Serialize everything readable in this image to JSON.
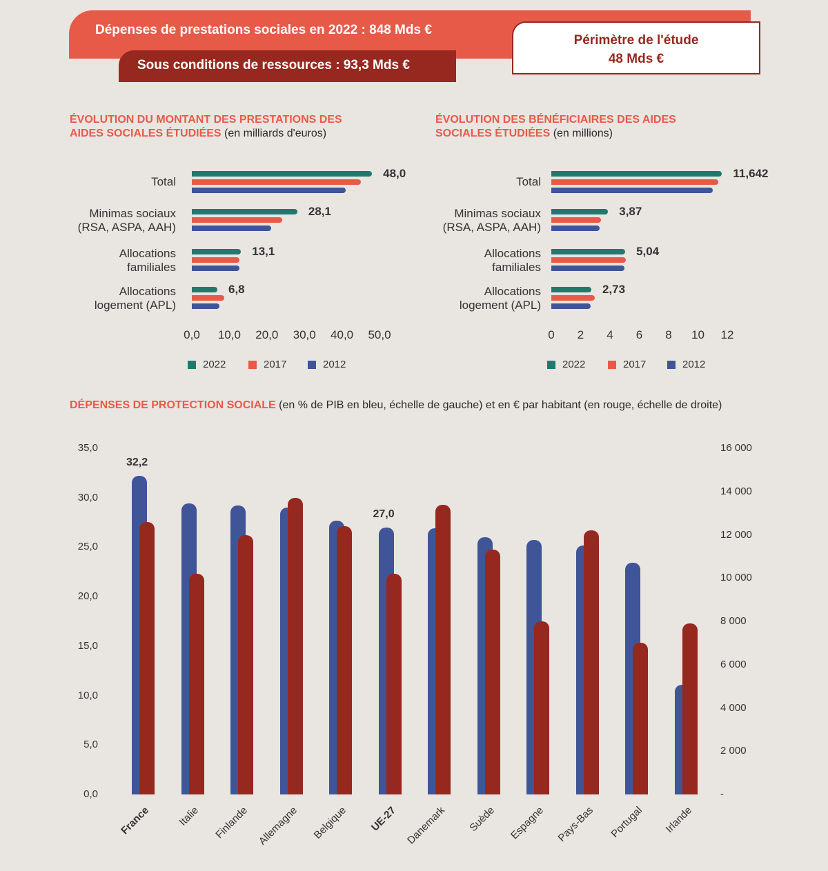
{
  "header": {
    "total_label": "Dépenses de prestations sociales en 2022 : 848 Mds €",
    "conditions_label": "Sous conditions de ressources : 93,3 Mds €",
    "perimeter_line1": "Périmètre de l'étude",
    "perimeter_line2": "48 Mds €"
  },
  "colors": {
    "s2022": "#1f7a6e",
    "s2017": "#e85a48",
    "s2012": "#3f5597",
    "pib_blue": "#3f5597",
    "hab_red": "#97281f"
  },
  "chart_data": [
    {
      "type": "bar",
      "orientation": "horizontal",
      "title_line1": "ÉVOLUTION DU MONTANT DES PRESTATIONS DES",
      "title_line2": "AIDES SOCIALES ÉTUDIÉES",
      "subtitle": "(en milliards d'euros)",
      "categories": [
        "Total",
        "Minimas sociaux\n(RSA, ASPA, AAH)",
        "Allocations\nfamiliales",
        "Allocations\nlogement (APL)"
      ],
      "series": [
        {
          "name": "2022",
          "values": [
            48.0,
            28.1,
            13.1,
            6.8
          ]
        },
        {
          "name": "2017",
          "values": [
            45.0,
            24.0,
            12.7,
            8.7
          ]
        },
        {
          "name": "2012",
          "values": [
            41.0,
            21.2,
            12.6,
            7.4
          ]
        }
      ],
      "value_labels": [
        "48,0",
        "28,1",
        "13,1",
        "6,8"
      ],
      "xlim": [
        0,
        50
      ],
      "ticks": [
        "0,0",
        "10,0",
        "20,0",
        "30,0",
        "40,0",
        "50,0"
      ],
      "tick_values": [
        0,
        10,
        20,
        30,
        40,
        50
      ],
      "legend": "bottom"
    },
    {
      "type": "bar",
      "orientation": "horizontal",
      "title_line1": "ÉVOLUTION DES BÉNÉFICIAIRES DES AIDES",
      "title_line2": "SOCIALES ÉTUDIÉES",
      "subtitle": "(en millions)",
      "categories": [
        "Total",
        "Minimas sociaux\n(RSA, ASPA, AAH)",
        "Allocations\nfamiliales",
        "Allocations\nlogement (APL)"
      ],
      "series": [
        {
          "name": "2022",
          "values": [
            11.642,
            3.87,
            5.04,
            2.73
          ]
        },
        {
          "name": "2017",
          "values": [
            11.4,
            3.4,
            5.1,
            2.95
          ]
        },
        {
          "name": "2012",
          "values": [
            11.0,
            3.3,
            5.0,
            2.7
          ]
        }
      ],
      "value_labels": [
        "11,642",
        "3,87",
        "5,04",
        "2,73"
      ],
      "xlim": [
        0,
        12
      ],
      "ticks": [
        "0",
        "2",
        "4",
        "6",
        "8",
        "10",
        "12"
      ],
      "tick_values": [
        0,
        2,
        4,
        6,
        8,
        10,
        12
      ],
      "legend": "bottom"
    },
    {
      "type": "bar",
      "orientation": "vertical",
      "title_highlight": "DÉPENSES DE PROTECTION SOCIALE",
      "title_rest": " (en % de PIB en bleu, échelle de gauche) et en € par habitant (en rouge, échelle de droite)",
      "categories": [
        "France",
        "Italie",
        "Finlande",
        "Allemagne",
        "Belgique",
        "UE-27",
        "Danemark",
        "Suède",
        "Espagne",
        "Pays-Bas",
        "Portugal",
        "Irlande"
      ],
      "bold_categories": [
        "France",
        "UE-27"
      ],
      "series": [
        {
          "name": "% de PIB",
          "axis": "left",
          "values": [
            32.2,
            29.4,
            29.2,
            29.0,
            27.7,
            27.0,
            26.9,
            26.0,
            25.7,
            25.2,
            23.4,
            11.1
          ]
        },
        {
          "name": "€ par habitant",
          "axis": "right",
          "values": [
            12600,
            10200,
            12000,
            13700,
            12400,
            10200,
            13400,
            11300,
            8000,
            12200,
            7000,
            7900
          ]
        }
      ],
      "annotations": [
        {
          "category": "France",
          "text": "32,2"
        },
        {
          "category": "UE-27",
          "text": "27,0"
        }
      ],
      "left_ylim": [
        0,
        35
      ],
      "left_ticks": [
        "0,0",
        "5,0",
        "10,0",
        "15,0",
        "20,0",
        "25,0",
        "30,0",
        "35,0"
      ],
      "left_tick_values": [
        0,
        5,
        10,
        15,
        20,
        25,
        30,
        35
      ],
      "right_ylim": [
        0,
        16000
      ],
      "right_ticks": [
        "-",
        "2 000",
        "4 000",
        "6 000",
        "8 000",
        "10 000",
        "12 000",
        "14 000",
        "16 000"
      ],
      "right_tick_values": [
        0,
        2000,
        4000,
        6000,
        8000,
        10000,
        12000,
        14000,
        16000
      ]
    }
  ]
}
